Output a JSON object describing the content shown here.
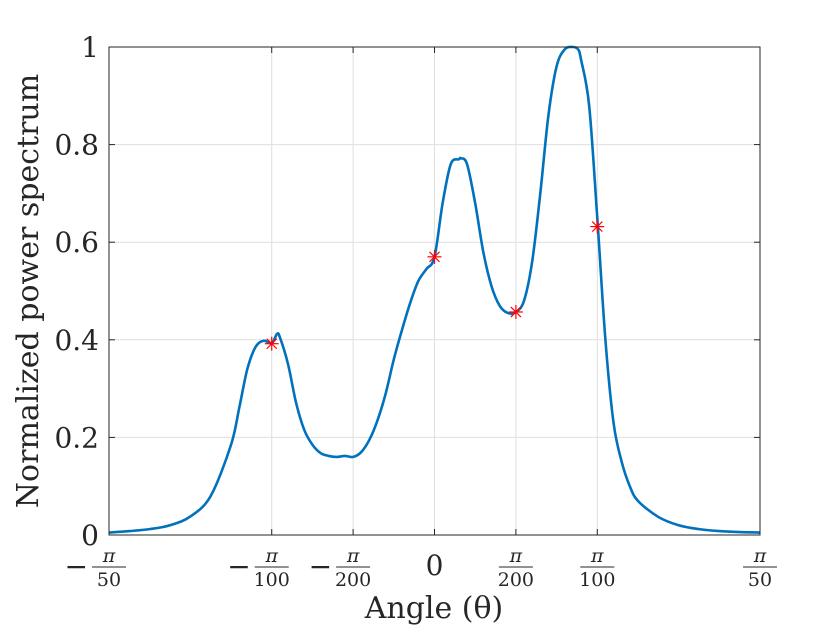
{
  "chart_data": {
    "type": "line",
    "xlabel": "Angle (θ)",
    "ylabel": "Normalized power spectrum",
    "xlim": [
      -0.06283,
      0.06283
    ],
    "ylim": [
      0,
      1
    ],
    "grid": true,
    "x_ticks": [
      {
        "value": -0.06283,
        "sign": "−",
        "num": "π",
        "den": "50"
      },
      {
        "value": -0.03142,
        "sign": "−",
        "num": "π",
        "den": "100"
      },
      {
        "value": -0.01571,
        "sign": "−",
        "num": "π",
        "den": "200"
      },
      {
        "value": 0,
        "sign": "",
        "num": "0",
        "den": ""
      },
      {
        "value": 0.01571,
        "sign": "",
        "num": "π",
        "den": "200"
      },
      {
        "value": 0.03142,
        "sign": "",
        "num": "π",
        "den": "100"
      },
      {
        "value": 0.06283,
        "sign": "",
        "num": "π",
        "den": "50"
      }
    ],
    "y_ticks": [
      "0",
      "0.2",
      "0.4",
      "0.6",
      "0.8",
      "1"
    ],
    "y_tick_values": [
      0,
      0.2,
      0.4,
      0.6,
      0.8,
      1
    ],
    "series": [
      {
        "color": "#0072BD",
        "x": [
          -0.06283,
          -0.0589,
          -0.05498,
          -0.05105,
          -0.04712,
          -0.0432,
          -0.03927,
          -0.0377,
          -0.03613,
          -0.03456,
          -0.03299,
          -0.03142,
          -0.0304,
          -0.02984,
          -0.02827,
          -0.0267,
          -0.02513,
          -0.02356,
          -0.02199,
          -0.02042,
          -0.01885,
          -0.01728,
          -0.01571,
          -0.01414,
          -0.01257,
          -0.011,
          -0.00942,
          -0.00785,
          -0.00628,
          -0.00471,
          -0.00314,
          -0.00157,
          0,
          0.00157,
          0.00314,
          0.00471,
          0.00506,
          0.00628,
          0.00785,
          0.00942,
          0.011,
          0.01257,
          0.01414,
          0.01571,
          0.01728,
          0.01885,
          0.02042,
          0.02199,
          0.02356,
          0.02513,
          0.0267,
          0.02772,
          0.02827,
          0.02985,
          0.03142,
          0.03299,
          0.03456,
          0.03613,
          0.0377,
          0.03927,
          0.0432,
          0.04712,
          0.05105,
          0.05498,
          0.0589,
          0.06283
        ],
        "y": [
          0.005,
          0.008,
          0.012,
          0.02,
          0.038,
          0.08,
          0.185,
          0.26,
          0.34,
          0.385,
          0.398,
          0.393,
          0.412,
          0.405,
          0.35,
          0.27,
          0.215,
          0.185,
          0.168,
          0.162,
          0.16,
          0.162,
          0.16,
          0.17,
          0.195,
          0.235,
          0.29,
          0.36,
          0.42,
          0.475,
          0.52,
          0.545,
          0.57,
          0.68,
          0.76,
          0.77,
          0.772,
          0.76,
          0.68,
          0.58,
          0.51,
          0.47,
          0.455,
          0.457,
          0.48,
          0.56,
          0.7,
          0.86,
          0.96,
          0.995,
          1.0,
          0.995,
          0.975,
          0.88,
          0.65,
          0.4,
          0.23,
          0.15,
          0.1,
          0.07,
          0.037,
          0.02,
          0.012,
          0.008,
          0.006,
          0.005
        ]
      },
      {
        "color": "#FF0000",
        "type": "scatter",
        "marker": "star",
        "x": [
          -0.03142,
          0,
          0.01571,
          0.03142
        ],
        "y": [
          0.392,
          0.57,
          0.457,
          0.632
        ]
      }
    ]
  }
}
